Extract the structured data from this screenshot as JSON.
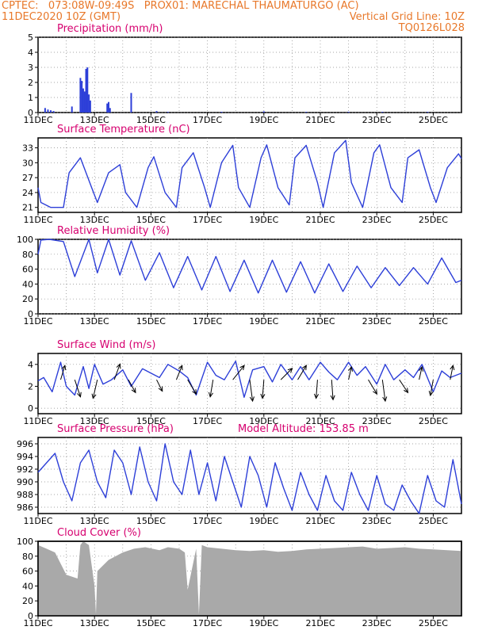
{
  "header": {
    "line1_left": "CPTEC:   073:08W-09:49S   PROX01: MARECHAL THAUMATURGO (AC)",
    "line2_left": "11DEC2020 10Z (GMT)",
    "line2_right": "Vertical Grid Line: 10Z",
    "line3_right": "TQ0126L028"
  },
  "colors": {
    "header": "#e8782a",
    "panel_title": "#d6006f",
    "series": "#2d3fd8",
    "cloud_fill": "#a9a9a9",
    "arrow": "#000000"
  },
  "x_ticks": [
    "11DEC",
    "13DEC",
    "15DEC",
    "17DEC",
    "19DEC",
    "21DEC",
    "23DEC",
    "25DEC"
  ],
  "chart_data": [
    {
      "type": "bar",
      "title": "Precipitation (mm/h)",
      "ylim": [
        0,
        5
      ],
      "yticks": [
        0,
        1,
        2,
        3,
        4,
        5
      ],
      "grid": true,
      "x_days": [
        0.25,
        0.35,
        0.45,
        0.55,
        1.2,
        1.5,
        1.55,
        1.6,
        1.65,
        1.7,
        1.75,
        1.8,
        1.85,
        2.45,
        2.5,
        2.55,
        3.3,
        4.2,
        4.6,
        6.5,
        8.0,
        9.5,
        11.0,
        12.2,
        13.8
      ],
      "values": [
        0.3,
        0.2,
        0.15,
        0.1,
        0.4,
        2.3,
        2.1,
        1.6,
        1.4,
        2.9,
        3.0,
        1.2,
        0.8,
        0.6,
        0.7,
        0.3,
        1.3,
        0.1,
        0.05,
        0.05,
        0.08,
        0.05,
        0.05,
        0.05,
        0.05
      ]
    },
    {
      "type": "line",
      "title": "Surface Temperature (nC)",
      "ylim": [
        20,
        35
      ],
      "yticks": [
        21,
        24,
        27,
        30,
        33
      ],
      "grid": true,
      "series": [
        {
          "x": [
            0,
            0.1,
            0.45,
            0.9,
            1.1,
            1.5,
            1.9,
            2.1,
            2.5,
            2.9,
            3.1,
            3.5,
            3.9,
            4.1,
            4.5,
            4.9,
            5.1,
            5.5,
            5.9,
            6.1,
            6.5,
            6.9,
            7.1,
            7.5,
            7.9,
            8.1,
            8.5,
            8.9,
            9.1,
            9.5,
            9.9,
            10.1,
            10.5,
            10.9,
            11.1,
            11.5,
            11.9,
            12.1,
            12.5,
            12.9,
            13.1,
            13.5,
            13.9,
            14.1,
            14.5,
            14.9,
            15.0
          ],
          "values": [
            25,
            22,
            21,
            21,
            28,
            31,
            25,
            22,
            28,
            29.6,
            24,
            21,
            29,
            31.2,
            24,
            21,
            29,
            32,
            25,
            21,
            30,
            33.5,
            25,
            21,
            31,
            33.6,
            25,
            21.5,
            31,
            33.5,
            26,
            21,
            32,
            34.5,
            26,
            21,
            32,
            33.6,
            25,
            22,
            31,
            32.6,
            25,
            22,
            29,
            31.8,
            30.8
          ]
        }
      ]
    },
    {
      "type": "line",
      "title": "Relative Humidity (%)",
      "ylim": [
        0,
        100
      ],
      "yticks": [
        0,
        20,
        40,
        60,
        80,
        100
      ],
      "grid": true,
      "series": [
        {
          "x": [
            0,
            0.1,
            0.4,
            0.9,
            1.3,
            1.8,
            2.1,
            2.5,
            2.9,
            3.3,
            3.8,
            4.3,
            4.8,
            5.3,
            5.8,
            6.3,
            6.8,
            7.3,
            7.8,
            8.3,
            8.8,
            9.3,
            9.8,
            10.3,
            10.8,
            11.3,
            11.8,
            12.3,
            12.8,
            13.3,
            13.8,
            14.3,
            14.8,
            15.0
          ],
          "values": [
            80,
            99,
            100,
            97,
            50,
            100,
            55,
            100,
            52,
            98,
            45,
            82,
            35,
            77,
            32,
            77,
            30,
            72,
            28,
            72,
            29,
            70,
            28,
            67,
            30,
            64,
            35,
            62,
            38,
            62,
            40,
            75,
            42,
            45
          ]
        }
      ]
    },
    {
      "type": "line",
      "title": "Surface Wind (m/s)",
      "ylim": [
        -0.5,
        5
      ],
      "yticks": [
        0,
        2,
        4
      ],
      "grid": true,
      "series": [
        {
          "x": [
            0,
            0.2,
            0.5,
            0.8,
            1.0,
            1.3,
            1.6,
            1.8,
            2.0,
            2.3,
            2.6,
            3.0,
            3.3,
            3.7,
            4.0,
            4.3,
            4.6,
            5.0,
            5.3,
            5.6,
            6.0,
            6.3,
            6.6,
            7.0,
            7.3,
            7.6,
            8.0,
            8.3,
            8.6,
            9.0,
            9.3,
            9.6,
            10.0,
            10.3,
            10.6,
            11.0,
            11.3,
            11.6,
            12.0,
            12.3,
            12.6,
            13.0,
            13.3,
            13.6,
            14.0,
            14.3,
            14.6,
            15.0
          ],
          "values": [
            2.5,
            2.8,
            1.5,
            4.2,
            2.0,
            1.2,
            3.8,
            1.8,
            4.0,
            2.2,
            2.6,
            3.5,
            2.0,
            3.6,
            3.2,
            2.8,
            4.0,
            3.4,
            2.8,
            1.2,
            4.2,
            3.0,
            2.6,
            4.3,
            1.0,
            3.5,
            3.8,
            2.4,
            4.0,
            2.6,
            3.8,
            2.6,
            4.2,
            3.3,
            2.6,
            4.2,
            3.0,
            3.8,
            2.2,
            4.0,
            2.6,
            3.5,
            2.8,
            4.0,
            1.5,
            3.4,
            2.8,
            3.2
          ]
        }
      ],
      "arrows": [
        {
          "x": 0.8,
          "dx": 0.15,
          "dy": 1.0
        },
        {
          "x": 1.3,
          "dx": 0.2,
          "dy": -1.2
        },
        {
          "x": 2.1,
          "dx": -0.15,
          "dy": -1.3
        },
        {
          "x": 2.7,
          "dx": 0.2,
          "dy": 1.1
        },
        {
          "x": 3.2,
          "dx": 0.25,
          "dy": -0.9
        },
        {
          "x": 4.2,
          "dx": 0.2,
          "dy": -0.8
        },
        {
          "x": 4.9,
          "dx": 0.2,
          "dy": 1.0
        },
        {
          "x": 5.3,
          "dx": 0.3,
          "dy": -1.0
        },
        {
          "x": 6.2,
          "dx": -0.1,
          "dy": -1.2
        },
        {
          "x": 6.9,
          "dx": 0.4,
          "dy": 1.0
        },
        {
          "x": 7.5,
          "dx": 0.1,
          "dy": -1.5
        },
        {
          "x": 8.0,
          "dx": -0.05,
          "dy": -1.3
        },
        {
          "x": 8.6,
          "dx": 0.4,
          "dy": 0.8
        },
        {
          "x": 9.2,
          "dx": 0.3,
          "dy": 1.0
        },
        {
          "x": 9.9,
          "dx": -0.05,
          "dy": -1.3
        },
        {
          "x": 10.4,
          "dx": 0.05,
          "dy": -1.4
        },
        {
          "x": 11.0,
          "dx": 0.1,
          "dy": 0.9
        },
        {
          "x": 11.7,
          "dx": 0.3,
          "dy": -1.0
        },
        {
          "x": 12.2,
          "dx": 0.1,
          "dy": -1.5
        },
        {
          "x": 12.8,
          "dx": 0.3,
          "dy": -0.9
        },
        {
          "x": 13.5,
          "dx": 0.1,
          "dy": 0.9
        },
        {
          "x": 14.0,
          "dx": -0.1,
          "dy": -1.1
        },
        {
          "x": 14.6,
          "dx": 0.1,
          "dy": 1.0
        }
      ]
    },
    {
      "type": "line",
      "title": "Surface Pressure (hPa)",
      "annotation": "Model Altitude: 153.85 m",
      "ylim": [
        985,
        997
      ],
      "yticks": [
        986,
        988,
        990,
        992,
        994,
        996
      ],
      "grid": true,
      "series": [
        {
          "x": [
            0,
            0.3,
            0.6,
            0.9,
            1.2,
            1.5,
            1.8,
            2.1,
            2.4,
            2.7,
            3.0,
            3.3,
            3.6,
            3.9,
            4.2,
            4.5,
            4.8,
            5.1,
            5.4,
            5.7,
            6.0,
            6.3,
            6.6,
            6.9,
            7.2,
            7.5,
            7.8,
            8.1,
            8.4,
            8.7,
            9.0,
            9.3,
            9.6,
            9.9,
            10.2,
            10.5,
            10.8,
            11.1,
            11.4,
            11.7,
            12.0,
            12.3,
            12.6,
            12.9,
            13.2,
            13.5,
            13.8,
            14.1,
            14.4,
            14.7,
            15.0
          ],
          "values": [
            991.5,
            993,
            994.5,
            990,
            987,
            993,
            995,
            990,
            987.5,
            995,
            993,
            988,
            995.5,
            990,
            987,
            996,
            990,
            988,
            995,
            988,
            993,
            987,
            994,
            990,
            986,
            994,
            991,
            986,
            993,
            989,
            985.5,
            991.5,
            988,
            985.5,
            991,
            987,
            985.5,
            991.5,
            988,
            985.5,
            991,
            986.5,
            985.5,
            989.5,
            987,
            985,
            991,
            987,
            986,
            993.5,
            986.5
          ]
        }
      ]
    },
    {
      "type": "area",
      "title": "Cloud Cover (%)",
      "ylim": [
        0,
        100
      ],
      "yticks": [
        0,
        20,
        40,
        60,
        80,
        100
      ],
      "grid": true,
      "x": [
        0,
        0.3,
        0.6,
        1.0,
        1.4,
        1.5,
        1.6,
        1.8,
        2.0,
        2.05,
        2.1,
        2.5,
        3.0,
        3.4,
        3.8,
        4.3,
        4.6,
        5.0,
        5.2,
        5.3,
        5.6,
        5.7,
        5.8,
        6.0,
        6.5,
        7.0,
        7.5,
        8.0,
        8.5,
        9.0,
        9.5,
        10.0,
        10.5,
        11.0,
        11.5,
        12.0,
        12.5,
        13.0,
        13.5,
        14.0,
        14.5,
        15.0
      ],
      "values": [
        95,
        90,
        85,
        55,
        50,
        95,
        100,
        95,
        40,
        2,
        60,
        75,
        85,
        90,
        92,
        88,
        92,
        90,
        85,
        35,
        90,
        2,
        95,
        92,
        90,
        88,
        87,
        88,
        86,
        87,
        89,
        90,
        91,
        92,
        93,
        90,
        91,
        92,
        90,
        89,
        88,
        87
      ]
    }
  ]
}
